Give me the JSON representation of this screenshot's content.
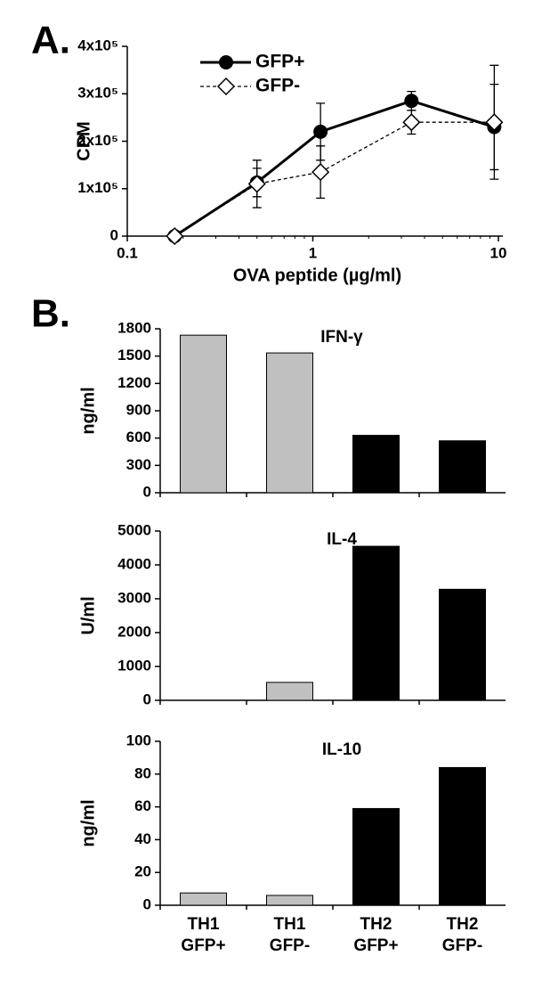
{
  "chart_data": [
    {
      "type": "line",
      "panel_label": "A.",
      "xlabel": "OVA peptide (µg/ml)",
      "ylabel": "CPM",
      "xscale": "log",
      "xlim": [
        0.1,
        10
      ],
      "xticks": [
        0.1,
        1,
        10
      ],
      "ylim": [
        0,
        400000
      ],
      "yticks": [
        0,
        {
          "value": 100000,
          "label": "1x10⁵"
        },
        {
          "value": 200000,
          "label": "2x10⁵"
        },
        {
          "value": 300000,
          "label": "3x10⁵"
        },
        {
          "value": 400000,
          "label": "4x10⁵"
        }
      ],
      "x": [
        0.18,
        0.5,
        1.1,
        3.4,
        9.5
      ],
      "series": [
        {
          "name": "GFP+",
          "color": "#000000",
          "marker": "circle",
          "line": "solid",
          "values": [
            0,
            113000,
            220000,
            285000,
            230000
          ],
          "errors": [
            0,
            30000,
            60000,
            20000,
            90000
          ]
        },
        {
          "name": "GFP-",
          "color": "#000000",
          "marker": "diamond",
          "line": "dashed",
          "values": [
            0,
            110000,
            135000,
            240000,
            240000
          ],
          "errors": [
            0,
            50000,
            55000,
            25000,
            120000
          ]
        }
      ]
    },
    {
      "type": "bar",
      "panel_label": "B.",
      "categories": [
        [
          "TH1",
          "GFP+"
        ],
        [
          "TH1",
          "GFP-"
        ],
        [
          "TH2",
          "GFP+"
        ],
        [
          "TH2",
          "GFP-"
        ]
      ],
      "colors": [
        "#c0c0c0",
        "#c0c0c0",
        "#000000",
        "#000000"
      ],
      "panels": [
        {
          "title": "IFN-γ",
          "ylabel": "ng/ml",
          "values": [
            1730,
            1535,
            630,
            570
          ],
          "ylim": [
            0,
            1800
          ],
          "yticks": [
            0,
            300,
            600,
            900,
            1200,
            1500,
            1800
          ]
        },
        {
          "title": "IL-4",
          "ylabel": "U/ml",
          "values": [
            0,
            530,
            4550,
            3280
          ],
          "ylim": [
            0,
            5000
          ],
          "yticks": [
            0,
            1000,
            2000,
            3000,
            4000,
            5000
          ]
        },
        {
          "title": "IL-10",
          "ylabel": "ng/ml",
          "values": [
            7.5,
            6,
            59,
            84
          ],
          "ylim": [
            0,
            100
          ],
          "yticks": [
            0,
            20,
            40,
            60,
            80,
            100
          ]
        }
      ]
    }
  ]
}
